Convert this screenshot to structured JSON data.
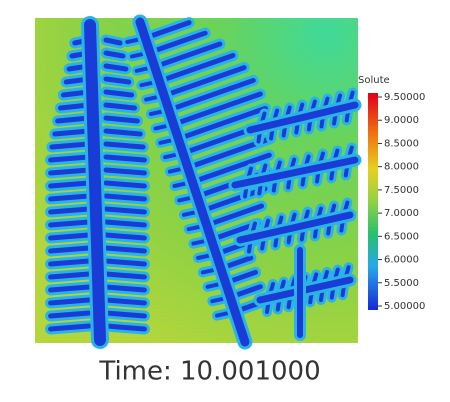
{
  "colorbar": {
    "title": "Solute",
    "labels": [
      "9.50000",
      "9.0000",
      "8.5000",
      "8.0000",
      "7.5000",
      "7.0000",
      "6.5000",
      "6.0000",
      "5.5000",
      "5.00000"
    ]
  },
  "caption": "Time: 10.001000"
}
